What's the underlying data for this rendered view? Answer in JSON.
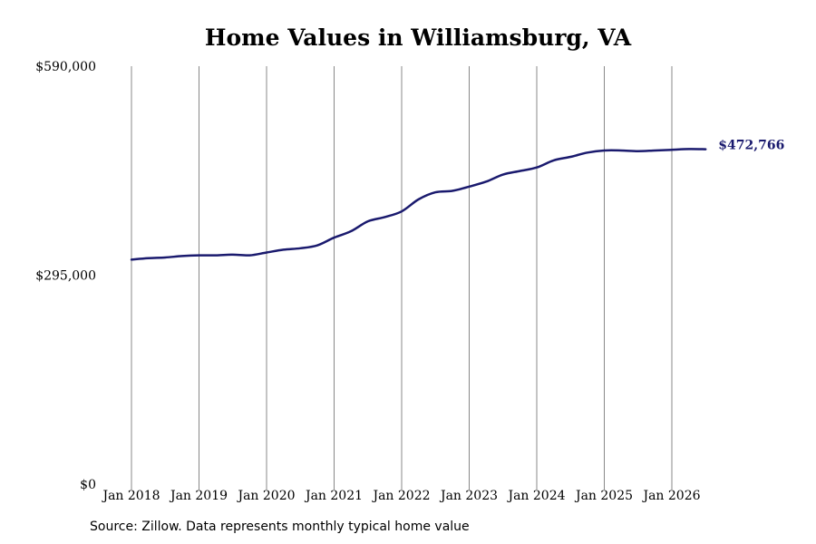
{
  "chart_data": {
    "type": "line",
    "title": "Home Values in Williamsburg, VA",
    "xlabel": "",
    "ylabel": "",
    "ylim": [
      0,
      590000
    ],
    "yticks": [
      {
        "value": 0,
        "label": "$0"
      },
      {
        "value": 295000,
        "label": "$295,000"
      },
      {
        "value": 590000,
        "label": "$590,000"
      }
    ],
    "xticks": [
      "Jan 2018",
      "Jan 2019",
      "Jan 2020",
      "Jan 2021",
      "Jan 2022",
      "Jan 2023",
      "Jan 2024",
      "Jan 2025",
      "Jan 2026"
    ],
    "xlim": [
      "2018-01",
      "2026-07"
    ],
    "grid": "vertical",
    "series": [
      {
        "color": "#1a1a6e",
        "points": [
          {
            "x": "2018-01",
            "y": 317000
          },
          {
            "x": "2018-04",
            "y": 319000
          },
          {
            "x": "2018-07",
            "y": 320000
          },
          {
            "x": "2018-10",
            "y": 322000
          },
          {
            "x": "2019-01",
            "y": 323000
          },
          {
            "x": "2019-04",
            "y": 323000
          },
          {
            "x": "2019-07",
            "y": 324000
          },
          {
            "x": "2019-10",
            "y": 323000
          },
          {
            "x": "2020-01",
            "y": 327000
          },
          {
            "x": "2020-04",
            "y": 331000
          },
          {
            "x": "2020-07",
            "y": 333000
          },
          {
            "x": "2020-10",
            "y": 337000
          },
          {
            "x": "2021-01",
            "y": 348000
          },
          {
            "x": "2021-04",
            "y": 357000
          },
          {
            "x": "2021-07",
            "y": 371000
          },
          {
            "x": "2021-10",
            "y": 377000
          },
          {
            "x": "2022-01",
            "y": 385000
          },
          {
            "x": "2022-04",
            "y": 402000
          },
          {
            "x": "2022-07",
            "y": 412000
          },
          {
            "x": "2022-10",
            "y": 414000
          },
          {
            "x": "2023-01",
            "y": 420000
          },
          {
            "x": "2023-04",
            "y": 427000
          },
          {
            "x": "2023-07",
            "y": 437000
          },
          {
            "x": "2023-10",
            "y": 442000
          },
          {
            "x": "2024-01",
            "y": 447000
          },
          {
            "x": "2024-04",
            "y": 457000
          },
          {
            "x": "2024-07",
            "y": 462000
          },
          {
            "x": "2024-10",
            "y": 468000
          },
          {
            "x": "2025-01",
            "y": 471000
          },
          {
            "x": "2025-04",
            "y": 471000
          },
          {
            "x": "2025-07",
            "y": 470000
          },
          {
            "x": "2025-10",
            "y": 471000
          },
          {
            "x": "2026-01",
            "y": 472000
          },
          {
            "x": "2026-04",
            "y": 473000
          },
          {
            "x": "2026-07",
            "y": 472766
          }
        ]
      }
    ],
    "end_label": "$472,766",
    "colors": {
      "line": "#1a1a6e",
      "grid": "#888888",
      "label": "#1a1a6e"
    }
  },
  "footer": {
    "source": "Source: Zillow. Data represents monthly typical home value"
  }
}
